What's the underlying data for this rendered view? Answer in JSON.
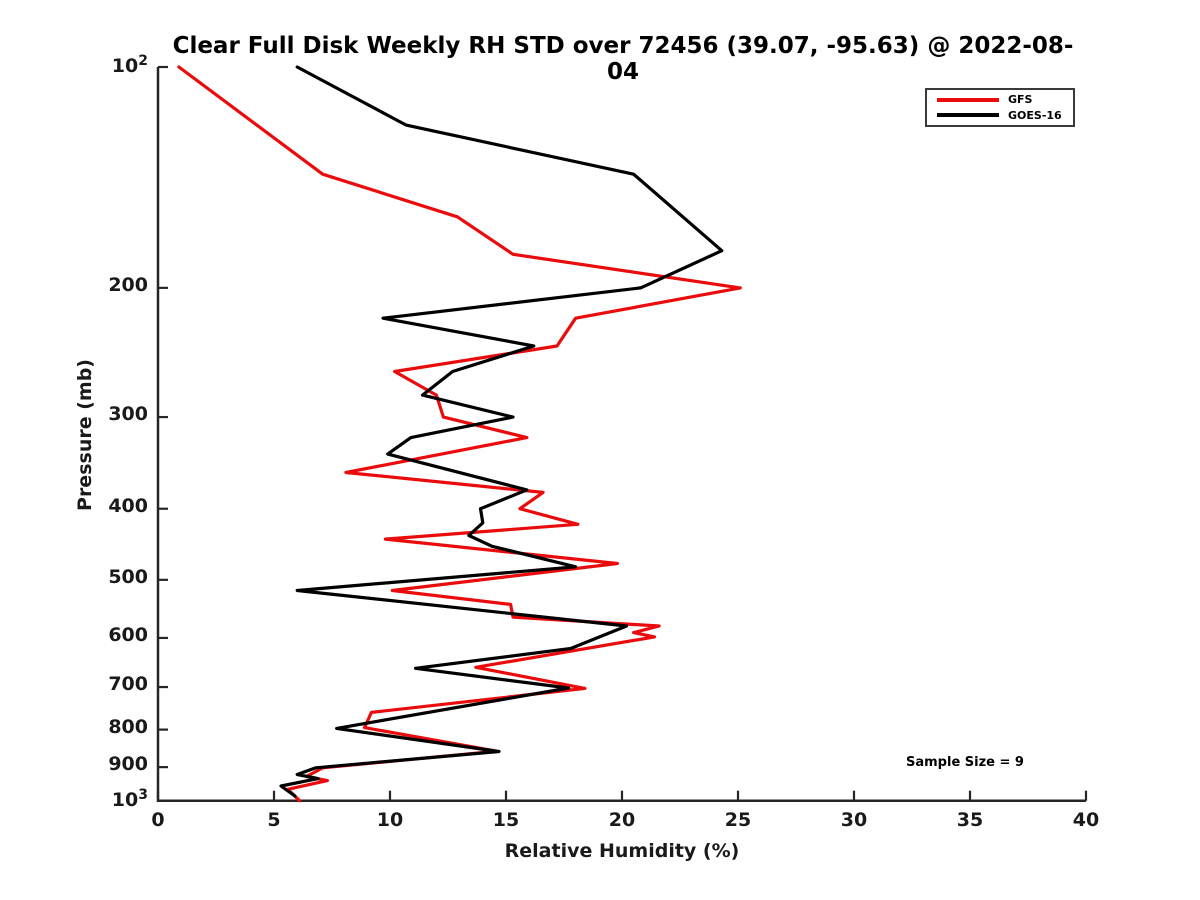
{
  "title": "Clear Full Disk Weekly RH STD over 72456 (39.07, -95.63) @ 2022-08-04",
  "annotation": "Sample Size = 9",
  "chart_data": {
    "type": "line",
    "title": "Clear Full Disk Weekly RH STD over 72456 (39.07, -95.63) @ 2022-08-04",
    "xlabel": "Relative Humidity (%)",
    "ylabel": "Pressure (mb)",
    "xlim": [
      0,
      40
    ],
    "ylim": [
      100,
      1000
    ],
    "y_scale": "log",
    "y_inverted": true,
    "grid": false,
    "axis_color": "#262626",
    "x_ticks": [
      0,
      5,
      10,
      15,
      20,
      25,
      30,
      35,
      40
    ],
    "y_ticks": [
      {
        "value": 100,
        "label": "10",
        "exp": "2"
      },
      {
        "value": 200,
        "label": "200"
      },
      {
        "value": 300,
        "label": "300"
      },
      {
        "value": 400,
        "label": "400"
      },
      {
        "value": 500,
        "label": "500"
      },
      {
        "value": 600,
        "label": "600"
      },
      {
        "value": 700,
        "label": "700"
      },
      {
        "value": 800,
        "label": "800"
      },
      {
        "value": 900,
        "label": "900"
      },
      {
        "value": 1000,
        "label": "10",
        "exp": "3"
      }
    ],
    "legend": {
      "position": "top-right",
      "border_color": "#3a3a3a"
    },
    "point_format": "[pressure_mb, relative_humidity_percent]",
    "series": [
      {
        "name": "GFS",
        "color": "#ea0c0c",
        "points": [
          [
            100,
            0.9
          ],
          [
            140,
            7.1
          ],
          [
            160,
            12.9
          ],
          [
            180,
            15.3
          ],
          [
            200,
            25.1
          ],
          [
            220,
            18.0
          ],
          [
            240,
            17.2
          ],
          [
            260,
            10.2
          ],
          [
            280,
            12.0
          ],
          [
            300,
            12.3
          ],
          [
            320,
            15.9
          ],
          [
            357,
            8.1
          ],
          [
            380,
            16.6
          ],
          [
            400,
            15.6
          ],
          [
            420,
            18.1
          ],
          [
            440,
            9.8
          ],
          [
            475,
            19.8
          ],
          [
            517,
            10.1
          ],
          [
            540,
            15.2
          ],
          [
            562,
            15.3
          ],
          [
            578,
            21.6
          ],
          [
            590,
            20.5
          ],
          [
            598,
            21.4
          ],
          [
            658,
            13.7
          ],
          [
            703,
            18.4
          ],
          [
            758,
            9.2
          ],
          [
            795,
            8.9
          ],
          [
            856,
            14.6
          ],
          [
            902,
            7.1
          ],
          [
            927,
            6.4
          ],
          [
            939,
            7.3
          ],
          [
            965,
            5.6
          ],
          [
            1000,
            6.1
          ]
        ]
      },
      {
        "name": "GOES-16",
        "color": "#000000",
        "points": [
          [
            100,
            6.0
          ],
          [
            120,
            10.7
          ],
          [
            140,
            20.5
          ],
          [
            178,
            24.3
          ],
          [
            200,
            20.8
          ],
          [
            220,
            9.7
          ],
          [
            240,
            16.2
          ],
          [
            260,
            12.7
          ],
          [
            280,
            11.4
          ],
          [
            300,
            15.3
          ],
          [
            320,
            10.9
          ],
          [
            337,
            9.9
          ],
          [
            377,
            15.9
          ],
          [
            400,
            13.9
          ],
          [
            418,
            14.0
          ],
          [
            435,
            13.4
          ],
          [
            450,
            14.4
          ],
          [
            480,
            18.0
          ],
          [
            517,
            6.0
          ],
          [
            578,
            20.2
          ],
          [
            620,
            17.8
          ],
          [
            660,
            11.1
          ],
          [
            702,
            17.7
          ],
          [
            797,
            7.7
          ],
          [
            857,
            14.7
          ],
          [
            902,
            6.8
          ],
          [
            921,
            6.0
          ],
          [
            933,
            6.9
          ],
          [
            955,
            5.3
          ],
          [
            985,
            5.9
          ]
        ]
      }
    ]
  }
}
